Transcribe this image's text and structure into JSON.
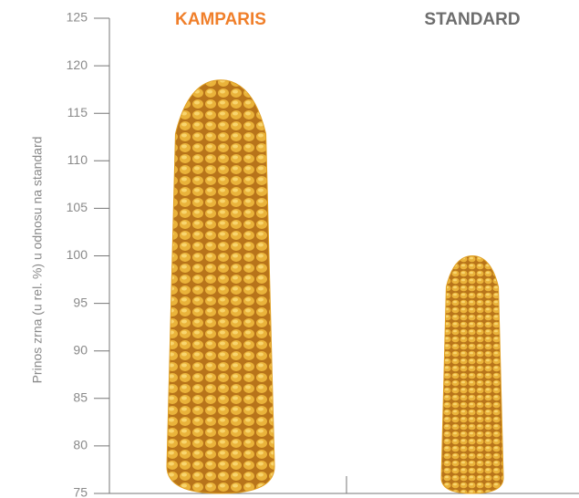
{
  "chart_data": {
    "type": "pictorial-bar",
    "y_axis_label": "Prinos zrna (u rel. %) u odnosu na standard",
    "categories": [
      "KAMPARIS",
      "STANDARD"
    ],
    "category_colors": [
      "#f07f2a",
      "#6d6d6d"
    ],
    "values": [
      118.5,
      100
    ],
    "color": "#e0a024",
    "ylim": [
      75,
      125
    ],
    "yticks": [
      75,
      80,
      85,
      90,
      95,
      100,
      105,
      110,
      115,
      120,
      125
    ]
  }
}
